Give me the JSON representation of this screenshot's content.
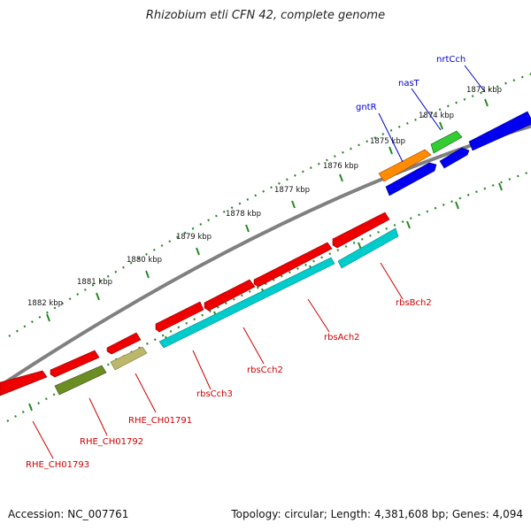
{
  "title": "Rhizobium etli CFN 42, complete genome",
  "footer": {
    "accession": "Accession: NC_007761",
    "topology": "Topology: circular; Length: 4,381,608 bp; Genes: 4,094"
  },
  "colors": {
    "backbone": "#808080",
    "tick_marks": "#228b22",
    "forward_label": "#0000cc",
    "reverse_label": "#cc0000"
  },
  "tick_labels": [
    "1873 kbp",
    "1874 kbp",
    "1875 kbp",
    "1876 kbp",
    "1877 kbp",
    "1878 kbp",
    "1879 kbp",
    "1880 kbp",
    "1881 kbp",
    "1882 kbp"
  ],
  "genes": [
    {
      "label": "nrtCch",
      "strand": "forward",
      "color": "#0000ee"
    },
    {
      "label": "nasT",
      "strand": "forward",
      "color": "#33cc33"
    },
    {
      "label": "gntR",
      "strand": "forward",
      "color": "#ff8c00"
    },
    {
      "label": "",
      "strand": "forward",
      "color": "#0000ee"
    },
    {
      "label": "",
      "strand": "forward",
      "color": "#0000ee"
    },
    {
      "label": "rbsBch2",
      "strand": "reverse",
      "color": "#00cccc"
    },
    {
      "label": "rbsAch2",
      "strand": "reverse",
      "color": "#00cccc"
    },
    {
      "label": "rbsCch2",
      "strand": "reverse",
      "color": "#ee0000"
    },
    {
      "label": "rbsCch3",
      "strand": "reverse",
      "color": "#ee0000"
    },
    {
      "label": "RHE_CH01791",
      "strand": "reverse",
      "color": "#bdb76b"
    },
    {
      "label": "RHE_CH01792",
      "strand": "reverse",
      "color": "#6b8e23"
    },
    {
      "label": "RHE_CH01793",
      "strand": "reverse",
      "color": "#ee0000"
    }
  ]
}
